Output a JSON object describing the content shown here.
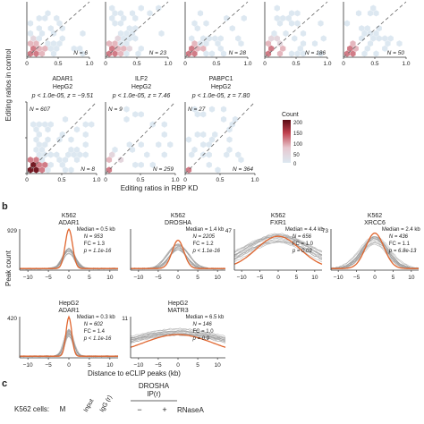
{
  "panel_a": {
    "row1": [
      {
        "n_upper": "",
        "n_lower": "N = 6"
      },
      {
        "n_upper": "",
        "n_lower": "N = 23"
      },
      {
        "n_upper": "",
        "n_lower": "N = 28"
      },
      {
        "n_upper": "",
        "n_lower": "N = 186"
      },
      {
        "n_upper": "",
        "n_lower": "N = 50"
      }
    ],
    "row2": [
      {
        "title1": "ADAR1",
        "title2": "HepG2",
        "stats": "p < 1.0e-05, z = −9.51",
        "n_upper": "N = 607",
        "n_lower": "N = 8"
      },
      {
        "title1": "ILF2",
        "title2": "HepG2",
        "stats": "p < 1.0e-05, z = 7.46",
        "n_upper": "N = 9",
        "n_lower": "N = 259"
      },
      {
        "title1": "PABPC1",
        "title2": "HepG2",
        "stats": "p < 1.0e-05, z = 7.80",
        "n_upper": "N = 27",
        "n_lower": "N = 364"
      }
    ],
    "y_ticks": [
      "0",
      "0.5",
      "1.0"
    ],
    "x_ticks": [
      "0",
      "0.5",
      "1.0"
    ],
    "ylabel": "Editing ratios in control",
    "xlabel": "Editing ratios in RBP KD",
    "legend": {
      "title": "Count",
      "ticks": [
        "200",
        "150",
        "100",
        "50",
        "0"
      ]
    }
  },
  "panel_b": {
    "label": "b",
    "ylabel": "Peak count",
    "xlabel": "Distance to eCLIP peaks (kb)",
    "x_ticks": [
      "−10",
      "−5",
      "0",
      "5",
      "10"
    ],
    "panels": [
      {
        "cell": "K562",
        "rbp": "ADAR1",
        "ymax": "929",
        "median": "Median = 0.5 kb",
        "n": "N = 953",
        "fc": "FC = 1.3",
        "p": "p = 1.1e-16"
      },
      {
        "cell": "K562",
        "rbp": "DROSHA",
        "ymax": "",
        "median": "Median = 1.4 kb",
        "n": "N = 2205",
        "fc": "FC = 1.2",
        "p": "p < 1.1e-16"
      },
      {
        "cell": "K562",
        "rbp": "FXR1",
        "ymax": "47",
        "median": "Median = 4.4 kb",
        "n": "N = 656",
        "fc": "FC = 1.0",
        "p": "p = 0.03"
      },
      {
        "cell": "K562",
        "rbp": "XRCC6",
        "ymax": "73",
        "median": "Median = 2.4 kb",
        "n": "N = 436",
        "fc": "FC = 1.1",
        "p": "p = 6.8e-13"
      },
      {
        "cell": "HepG2",
        "rbp": "ADAR1",
        "ymax": "420",
        "median": "Median = 0.3 kb",
        "n": "N = 602",
        "fc": "FC = 1.4",
        "p": "p < 1.1e-16"
      },
      {
        "cell": "HepG2",
        "rbp": "MATR3",
        "ymax": "11",
        "median": "Median = 6.5 kb",
        "n": "N = 146",
        "fc": "FC = 1.0",
        "p": "p = 0.9"
      }
    ]
  },
  "panel_c": {
    "label": "c",
    "cells_label": "K562 cells:",
    "lanes": [
      "M",
      "Input",
      "IgG (r)"
    ],
    "drosha1": "DROSHA",
    "drosha2": "IP(r)",
    "minus": "−",
    "plus": "+",
    "rnase": "RNaseA"
  },
  "colors": {
    "accent_orange": "#e0662f",
    "scatter_low": "#c9dbe8",
    "scatter_high": "#7a1018",
    "null_gray": "#9a9a9a"
  }
}
